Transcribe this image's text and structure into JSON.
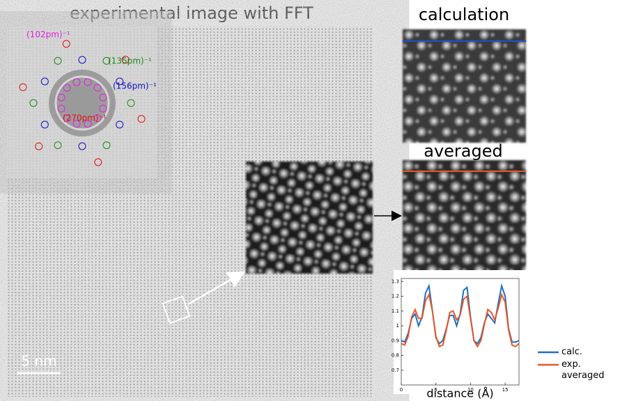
{
  "figure_title": "experimental image with FFT",
  "calculation_title": "calculation",
  "averaged_title": "averaged",
  "scale_bar": "5 nm",
  "fft_labels": [
    {
      "text": "(102pm)⁻¹",
      "color": "#e020e0"
    },
    {
      "text": "(135pm)⁻¹",
      "color": "#1a8a1a"
    },
    {
      "text": "(156pm)⁻¹",
      "color": "#1010c0"
    },
    {
      "text": "(270pm)⁻¹",
      "color": "#e01010"
    }
  ],
  "chart_data": {
    "type": "line",
    "xlabel": "distance (Å)",
    "x": [
      0,
      0.5,
      1,
      1.5,
      2,
      2.5,
      3,
      3.5,
      4,
      4.5,
      5,
      5.5,
      6,
      6.5,
      7,
      7.5,
      8,
      8.5,
      9,
      9.5,
      10,
      10.5,
      11,
      11.5,
      12,
      12.5,
      13,
      13.5,
      14,
      14.5,
      15,
      15.5,
      16,
      16.5,
      17
    ],
    "series": [
      {
        "name": "calc.",
        "color": "#1f6fc0",
        "values": [
          0.9,
          0.89,
          0.95,
          1.05,
          1.08,
          1.0,
          1.06,
          1.22,
          1.27,
          1.1,
          0.92,
          0.88,
          0.9,
          0.98,
          1.07,
          1.07,
          1.0,
          1.08,
          1.24,
          1.26,
          1.06,
          0.9,
          0.88,
          0.92,
          1.02,
          1.08,
          1.05,
          1.02,
          1.15,
          1.27,
          1.2,
          0.98,
          0.89,
          0.89,
          0.9
        ]
      },
      {
        "name": "exp. averaged",
        "color": "#e8572a",
        "values": [
          0.88,
          0.87,
          0.93,
          1.06,
          1.11,
          1.05,
          1.05,
          1.17,
          1.21,
          1.1,
          0.93,
          0.86,
          0.87,
          0.97,
          1.09,
          1.1,
          1.04,
          1.07,
          1.18,
          1.2,
          1.05,
          0.9,
          0.86,
          0.9,
          1.01,
          1.11,
          1.09,
          1.04,
          1.12,
          1.21,
          1.16,
          0.97,
          0.87,
          0.86,
          0.88
        ]
      }
    ],
    "xlim": [
      0,
      17
    ],
    "xticks": [
      0,
      5,
      10,
      15
    ],
    "ylim": [
      0.6,
      1.32
    ],
    "yticks": [
      0.7,
      0.8,
      0.9,
      1,
      1.1,
      1.2,
      1.3
    ]
  }
}
